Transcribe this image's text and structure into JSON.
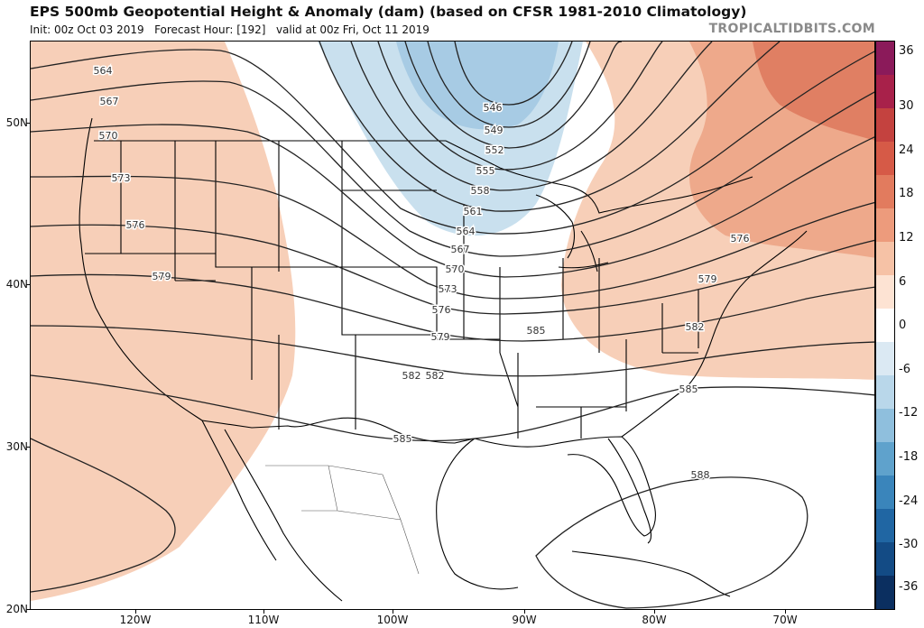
{
  "header": {
    "title": "EPS 500mb Geopotential Height & Anomaly (dam) (based on CFSR 1981-2010 Climatology)",
    "init": "Init: 00z Oct 03 2019",
    "forecast_hour": "Forecast Hour: [192]",
    "valid": "valid at 00z Fri, Oct 11 2019",
    "brand": "TROPICALTIDBITS.COM"
  },
  "axes": {
    "latitudes": [
      "50N",
      "40N",
      "30N",
      "20N"
    ],
    "longitudes": [
      "120W",
      "110W",
      "100W",
      "90W",
      "80W",
      "70W"
    ]
  },
  "colorbar": {
    "labels": [
      "36",
      "30",
      "24",
      "18",
      "12",
      "6",
      "0",
      "-6",
      "-12",
      "-18",
      "-24",
      "-30",
      "-36"
    ],
    "colors": [
      "#8b1a5a",
      "#a8214a",
      "#c4423f",
      "#d65a47",
      "#e27b5e",
      "#ed9b7c",
      "#f6c2a6",
      "#fde3d3",
      "#ffffff",
      "#dbe9f3",
      "#b9d7ea",
      "#8fbfdd",
      "#5fa2cc",
      "#3a85bb",
      "#2066a3",
      "#134b85",
      "#0b2f60"
    ]
  },
  "contours": {
    "labels": [
      "564",
      "567",
      "570",
      "573",
      "576",
      "579",
      "582",
      "585",
      "588",
      "546",
      "549",
      "552",
      "555",
      "558",
      "561",
      "564",
      "567",
      "570",
      "573",
      "576",
      "579",
      "582",
      "585",
      "576",
      "579",
      "582",
      "585"
    ]
  },
  "map_colors": {
    "warm_light": "#f7cfb8",
    "warm_mid": "#eea98b",
    "warm_strong": "#e07f63",
    "cool_light": "#c9e0ee",
    "cool_mid": "#a7cbe4"
  }
}
